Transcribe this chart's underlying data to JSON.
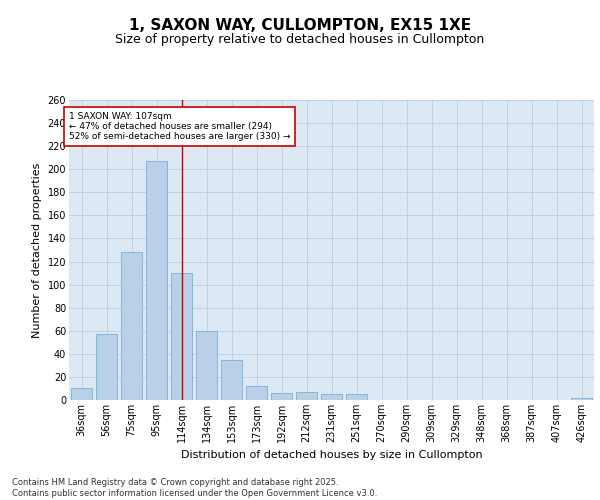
{
  "title": "1, SAXON WAY, CULLOMPTON, EX15 1XE",
  "subtitle": "Size of property relative to detached houses in Cullompton",
  "xlabel": "Distribution of detached houses by size in Cullompton",
  "ylabel": "Number of detached properties",
  "categories": [
    "36sqm",
    "56sqm",
    "75sqm",
    "95sqm",
    "114sqm",
    "134sqm",
    "153sqm",
    "173sqm",
    "192sqm",
    "212sqm",
    "231sqm",
    "251sqm",
    "270sqm",
    "290sqm",
    "309sqm",
    "329sqm",
    "348sqm",
    "368sqm",
    "387sqm",
    "407sqm",
    "426sqm"
  ],
  "values": [
    10,
    57,
    128,
    207,
    110,
    60,
    35,
    12,
    6,
    7,
    5,
    5,
    0,
    0,
    0,
    0,
    0,
    0,
    0,
    0,
    2
  ],
  "bar_color": "#b8d0e8",
  "bar_edge_color": "#7aafd4",
  "grid_color": "#b8cfe0",
  "background_color": "#dce8f4",
  "vline_color": "#cc0000",
  "vline_pos": 4.0,
  "annotation_text": "1 SAXON WAY: 107sqm\n← 47% of detached houses are smaller (294)\n52% of semi-detached houses are larger (330) →",
  "annotation_box_color": "#cc0000",
  "ylim": [
    0,
    260
  ],
  "yticks": [
    0,
    20,
    40,
    60,
    80,
    100,
    120,
    140,
    160,
    180,
    200,
    220,
    240,
    260
  ],
  "footer": "Contains HM Land Registry data © Crown copyright and database right 2025.\nContains public sector information licensed under the Open Government Licence v3.0.",
  "title_fontsize": 11,
  "subtitle_fontsize": 9,
  "label_fontsize": 8,
  "tick_fontsize": 7,
  "footer_fontsize": 6
}
